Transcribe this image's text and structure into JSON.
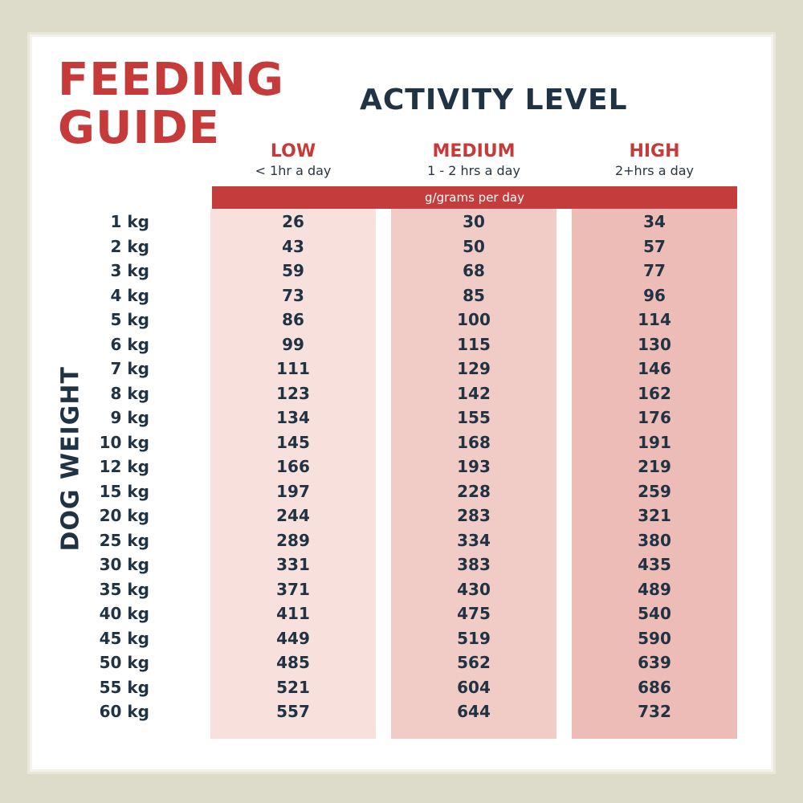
{
  "title_lines": [
    "FEEDING",
    "GUIDE"
  ],
  "activity_heading": "ACTIVITY LEVEL",
  "columns": [
    {
      "level": "LOW",
      "duration": "< 1hr a day"
    },
    {
      "level": "MEDIUM",
      "duration": "1 - 2 hrs a day"
    },
    {
      "level": "HIGH",
      "duration": "2+hrs a day"
    }
  ],
  "unit_band": "g/grams per day",
  "row_axis_label": "DOG WEIGHT",
  "rows": [
    {
      "weight": "1 kg",
      "low": "26",
      "medium": "30",
      "high": "34"
    },
    {
      "weight": "2 kg",
      "low": "43",
      "medium": "50",
      "high": "57"
    },
    {
      "weight": "3 kg",
      "low": "59",
      "medium": "68",
      "high": "77"
    },
    {
      "weight": "4 kg",
      "low": "73",
      "medium": "85",
      "high": "96"
    },
    {
      "weight": "5 kg",
      "low": "86",
      "medium": "100",
      "high": "114"
    },
    {
      "weight": "6 kg",
      "low": "99",
      "medium": "115",
      "high": "130"
    },
    {
      "weight": "7 kg",
      "low": "111",
      "medium": "129",
      "high": "146"
    },
    {
      "weight": "8 kg",
      "low": "123",
      "medium": "142",
      "high": "162"
    },
    {
      "weight": "9 kg",
      "low": "134",
      "medium": "155",
      "high": "176"
    },
    {
      "weight": "10 kg",
      "low": "145",
      "medium": "168",
      "high": "191"
    },
    {
      "weight": "12 kg",
      "low": "166",
      "medium": "193",
      "high": "219"
    },
    {
      "weight": "15 kg",
      "low": "197",
      "medium": "228",
      "high": "259"
    },
    {
      "weight": "20 kg",
      "low": "244",
      "medium": "283",
      "high": "321"
    },
    {
      "weight": "25 kg",
      "low": "289",
      "medium": "334",
      "high": "380"
    },
    {
      "weight": "30 kg",
      "low": "331",
      "medium": "383",
      "high": "435"
    },
    {
      "weight": "35 kg",
      "low": "371",
      "medium": "430",
      "high": "489"
    },
    {
      "weight": "40 kg",
      "low": "411",
      "medium": "475",
      "high": "540"
    },
    {
      "weight": "45 kg",
      "low": "449",
      "medium": "519",
      "high": "590"
    },
    {
      "weight": "50 kg",
      "low": "485",
      "medium": "562",
      "high": "639"
    },
    {
      "weight": "55 kg",
      "low": "521",
      "medium": "604",
      "high": "686"
    },
    {
      "weight": "60 kg",
      "low": "557",
      "medium": "644",
      "high": "732"
    }
  ],
  "colors": {
    "background": "#dddccb",
    "accent_red": "#c63a3a",
    "navy_text": "#1f3344",
    "low_column": "#f8e1dc",
    "medium_column": "#f1ccc6",
    "high_column": "#eebcb6"
  }
}
